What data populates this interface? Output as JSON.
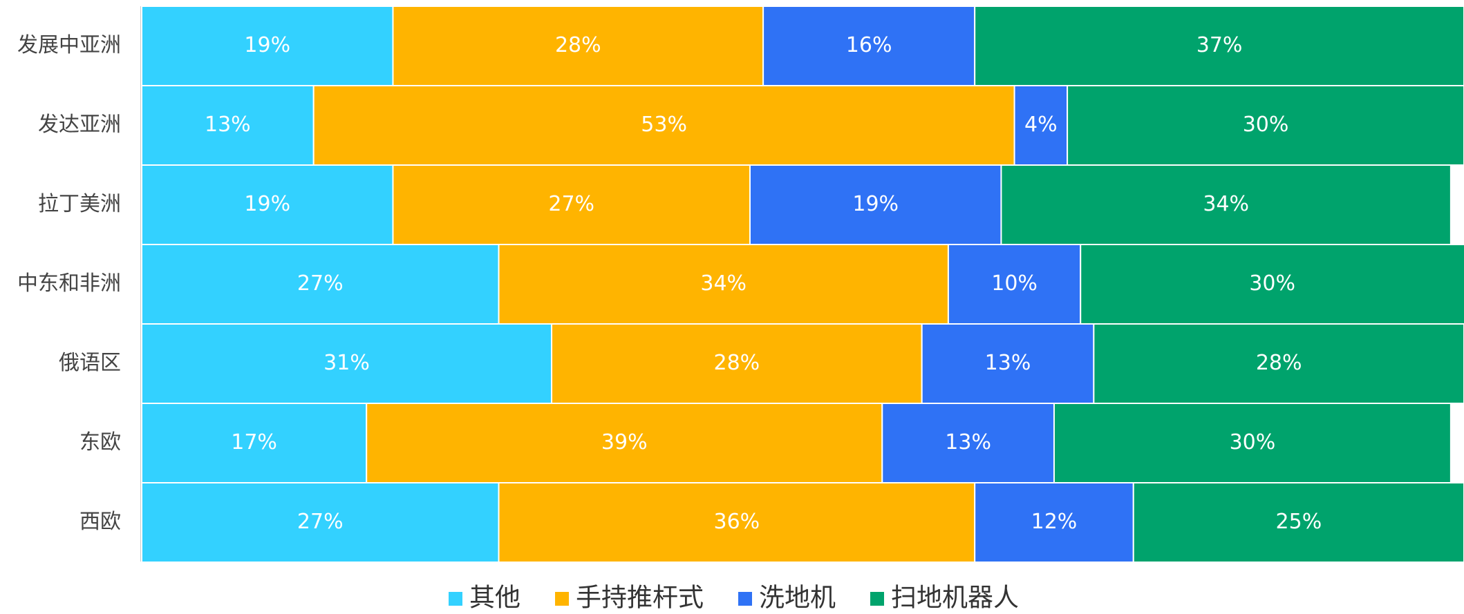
{
  "chart_data": {
    "type": "stacked_bar_horizontal",
    "categories": [
      "发展中亚洲",
      "发达亚洲",
      "拉丁美洲",
      "中东和非洲",
      "俄语区",
      "东欧",
      "西欧"
    ],
    "xlim": [
      0,
      100
    ],
    "series": [
      {
        "name": "其他",
        "color": "#33d1ff",
        "values": [
          19,
          13,
          19,
          27,
          31,
          17,
          27
        ],
        "value_labels": [
          "19%",
          "13%",
          "19%",
          "27%",
          "31%",
          "17%",
          "27%"
        ]
      },
      {
        "name": "手持推杆式",
        "color": "#ffb400",
        "values": [
          28,
          53,
          27,
          34,
          28,
          39,
          36
        ],
        "value_labels": [
          "28%",
          "53%",
          "27%",
          "34%",
          "28%",
          "39%",
          "36%"
        ]
      },
      {
        "name": "洗地机",
        "color": "#2f72f5",
        "values": [
          16,
          4,
          19,
          10,
          13,
          13,
          12
        ],
        "value_labels": [
          "16%",
          "4%",
          "19%",
          "10%",
          "13%",
          "13%",
          "12%"
        ]
      },
      {
        "name": "扫地机器人",
        "color": "#00a36c",
        "values": [
          37,
          30,
          34,
          30,
          28,
          30,
          25
        ],
        "value_labels": [
          "37%",
          "30%",
          "34%",
          "30%",
          "28%",
          "30%",
          "25%"
        ]
      }
    ],
    "legend": "bottom"
  }
}
